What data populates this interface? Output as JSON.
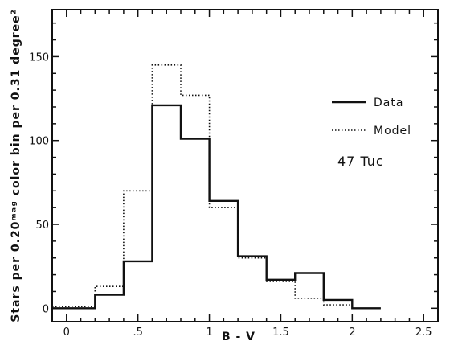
{
  "chart_data": {
    "type": "histogram-step",
    "xlabel": "B - V",
    "ylabel": "Stars per 0.20ᵐᵃᵍ color bin per 0.31 degree²",
    "xlim": [
      -0.1,
      2.6
    ],
    "ylim": [
      -8,
      178
    ],
    "x_ticks": [
      0,
      0.5,
      1,
      1.5,
      2,
      2.5
    ],
    "x_tick_labels": [
      "0",
      ".5",
      "1",
      "1.5",
      "2",
      "2.5"
    ],
    "y_ticks": [
      0,
      50,
      100,
      150
    ],
    "y_tick_labels": [
      "0",
      "50",
      "100",
      "150"
    ],
    "bin_edges": [
      -0.1,
      0.2,
      0.4,
      0.6,
      0.8,
      1.0,
      1.2,
      1.4,
      1.6,
      1.8,
      2.0,
      2.2
    ],
    "series": [
      {
        "name": "Data",
        "style": "solid",
        "values": [
          0,
          8,
          28,
          121,
          101,
          64,
          31,
          17,
          21,
          5,
          0
        ]
      },
      {
        "name": "Model",
        "style": "dotted",
        "values": [
          1,
          13,
          70,
          145,
          127,
          60,
          30,
          16,
          6,
          2,
          0
        ]
      }
    ],
    "legend_position": "right",
    "annotation": "47 Tuc"
  }
}
